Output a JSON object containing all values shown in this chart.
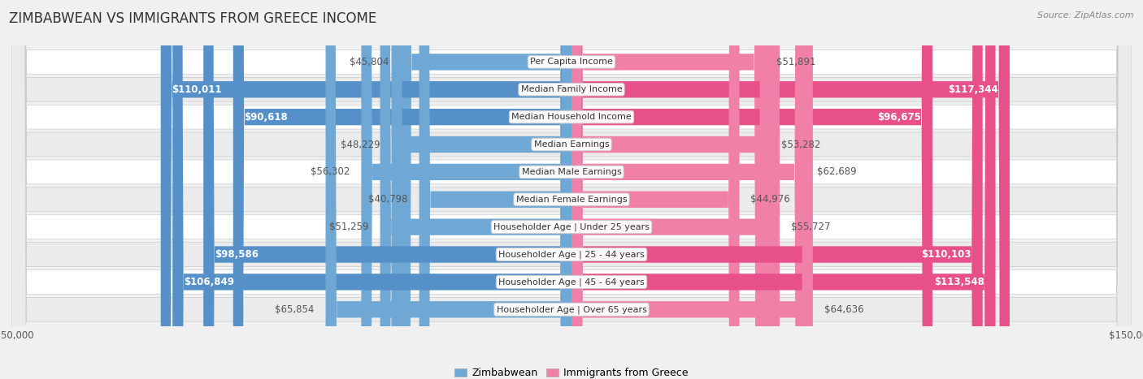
{
  "title": "ZIMBABWEAN VS IMMIGRANTS FROM GREECE INCOME",
  "source": "Source: ZipAtlas.com",
  "categories": [
    "Per Capita Income",
    "Median Family Income",
    "Median Household Income",
    "Median Earnings",
    "Median Male Earnings",
    "Median Female Earnings",
    "Householder Age | Under 25 years",
    "Householder Age | 25 - 44 years",
    "Householder Age | 45 - 64 years",
    "Householder Age | Over 65 years"
  ],
  "zimbabwean_values": [
    45804,
    110011,
    90618,
    48229,
    56302,
    40798,
    51259,
    98586,
    106849,
    65854
  ],
  "greece_values": [
    51891,
    117344,
    96675,
    53282,
    62689,
    44976,
    55727,
    110103,
    113548,
    64636
  ],
  "zimbabwean_labels": [
    "$45,804",
    "$110,011",
    "$90,618",
    "$48,229",
    "$56,302",
    "$40,798",
    "$51,259",
    "$98,586",
    "$106,849",
    "$65,854"
  ],
  "greece_labels": [
    "$51,891",
    "$117,344",
    "$96,675",
    "$53,282",
    "$62,689",
    "$44,976",
    "$55,727",
    "$110,103",
    "$113,548",
    "$64,636"
  ],
  "max_value": 150000,
  "blue_light": "#a8c8e8",
  "blue_mid": "#6fa8d4",
  "blue_strong": "#5590c8",
  "pink_light": "#f4b8cc",
  "pink_mid": "#f080a8",
  "pink_strong": "#e8508a",
  "blue_label_threshold": 75000,
  "pink_label_threshold": 75000,
  "bg_color": "#f0f0f0",
  "row_white": "#ffffff",
  "row_gray": "#ebebeb",
  "title_fontsize": 12,
  "source_fontsize": 8,
  "label_fontsize": 8.5,
  "cat_fontsize": 8,
  "tick_fontsize": 8.5
}
